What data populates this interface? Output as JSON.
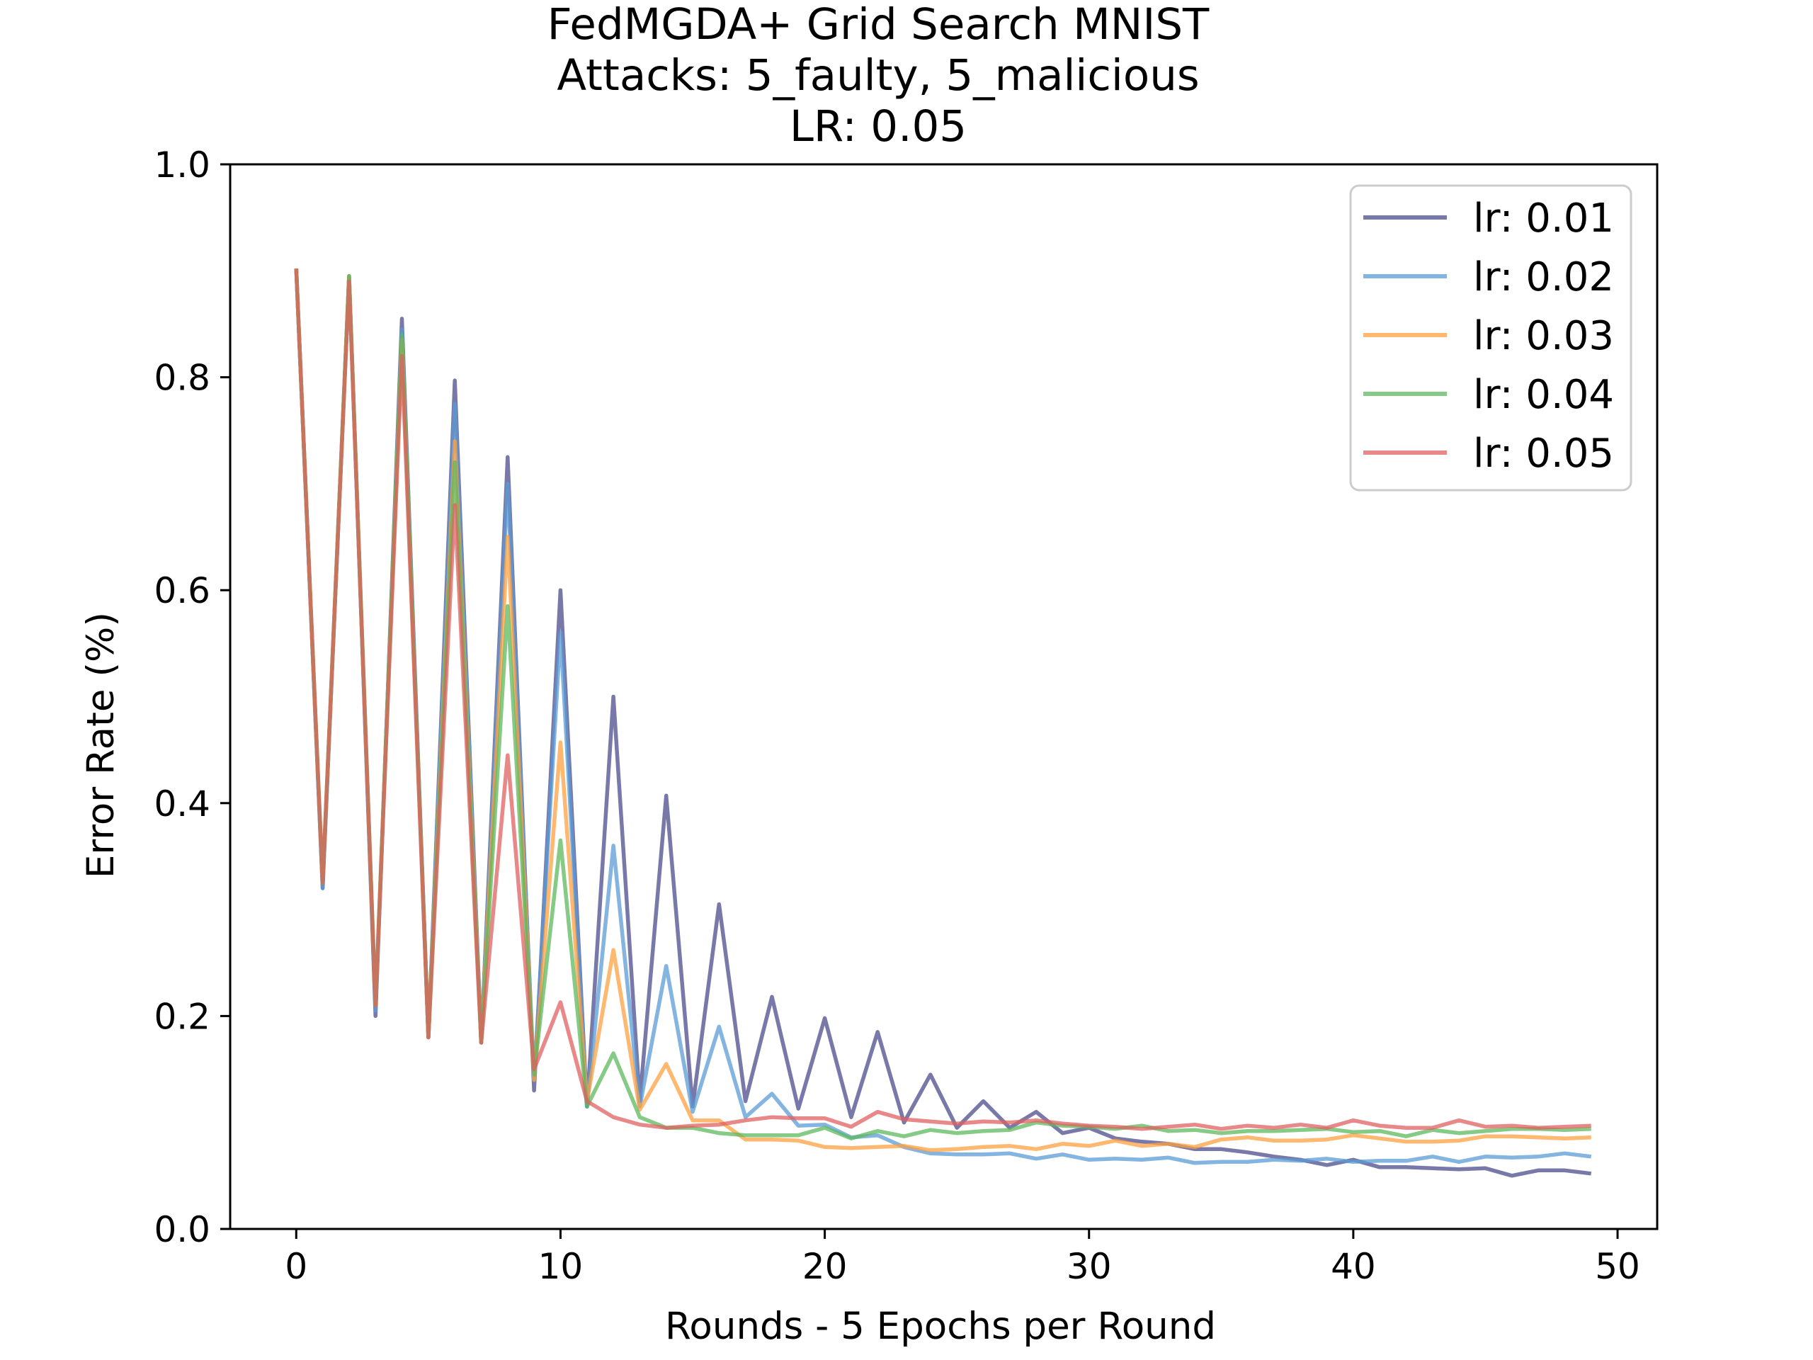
{
  "chart_data": {
    "type": "line",
    "title": [
      "FedMGDA+ Grid Search MNIST",
      "Attacks: 5_faulty, 5_malicious",
      "LR: 0.05"
    ],
    "xlabel": "Rounds - 5 Epochs per Round",
    "ylabel": "Error Rate (%)",
    "xlim": [
      -2.5,
      51.5
    ],
    "ylim": [
      0.0,
      1.0
    ],
    "xticks": [
      0,
      10,
      20,
      30,
      40,
      50
    ],
    "xtick_labels": [
      "0",
      "10",
      "20",
      "30",
      "40",
      "50"
    ],
    "yticks": [
      0.0,
      0.2,
      0.4,
      0.6,
      0.8,
      1.0
    ],
    "ytick_labels": [
      "0.0",
      "0.2",
      "0.4",
      "0.6",
      "0.8",
      "1.0"
    ],
    "grid": false,
    "legend_position": "top-right",
    "x": [
      0,
      1,
      2,
      3,
      4,
      5,
      6,
      7,
      8,
      9,
      10,
      11,
      12,
      13,
      14,
      15,
      16,
      17,
      18,
      19,
      20,
      21,
      22,
      23,
      24,
      25,
      26,
      27,
      28,
      29,
      30,
      31,
      32,
      33,
      34,
      35,
      36,
      37,
      38,
      39,
      40,
      41,
      42,
      43,
      44,
      45,
      46,
      47,
      48,
      49
    ],
    "series": [
      {
        "name": "lr: 0.01",
        "color": "#4c4c8c",
        "values": [
          0.902,
          0.32,
          0.895,
          0.2,
          0.855,
          0.18,
          0.797,
          0.175,
          0.725,
          0.13,
          0.6,
          0.115,
          0.5,
          0.12,
          0.407,
          0.115,
          0.305,
          0.12,
          0.218,
          0.113,
          0.198,
          0.105,
          0.185,
          0.1,
          0.145,
          0.095,
          0.12,
          0.095,
          0.11,
          0.09,
          0.095,
          0.085,
          0.082,
          0.08,
          0.075,
          0.075,
          0.072,
          0.068,
          0.065,
          0.06,
          0.065,
          0.058,
          0.058,
          0.057,
          0.056,
          0.057,
          0.05,
          0.055,
          0.055,
          0.052
        ]
      },
      {
        "name": "lr: 0.02",
        "color": "#5b9bd5",
        "values": [
          0.902,
          0.32,
          0.895,
          0.205,
          0.845,
          0.18,
          0.775,
          0.175,
          0.7,
          0.14,
          0.56,
          0.115,
          0.36,
          0.115,
          0.247,
          0.11,
          0.19,
          0.105,
          0.127,
          0.097,
          0.098,
          0.086,
          0.088,
          0.077,
          0.071,
          0.07,
          0.07,
          0.071,
          0.066,
          0.07,
          0.065,
          0.066,
          0.065,
          0.067,
          0.062,
          0.063,
          0.063,
          0.065,
          0.064,
          0.066,
          0.063,
          0.064,
          0.064,
          0.068,
          0.063,
          0.068,
          0.067,
          0.068,
          0.071,
          0.068
        ]
      },
      {
        "name": "lr: 0.03",
        "color": "#ffa040",
        "values": [
          0.902,
          0.325,
          0.895,
          0.21,
          0.835,
          0.18,
          0.74,
          0.175,
          0.65,
          0.14,
          0.457,
          0.12,
          0.262,
          0.112,
          0.155,
          0.102,
          0.102,
          0.084,
          0.084,
          0.083,
          0.077,
          0.076,
          0.077,
          0.078,
          0.074,
          0.075,
          0.077,
          0.078,
          0.075,
          0.08,
          0.078,
          0.083,
          0.078,
          0.08,
          0.077,
          0.084,
          0.086,
          0.083,
          0.083,
          0.084,
          0.088,
          0.085,
          0.082,
          0.082,
          0.083,
          0.087,
          0.087,
          0.086,
          0.085,
          0.086
        ]
      },
      {
        "name": "lr: 0.04",
        "color": "#5cb85c",
        "values": [
          0.902,
          0.325,
          0.895,
          0.21,
          0.84,
          0.18,
          0.72,
          0.175,
          0.585,
          0.145,
          0.365,
          0.115,
          0.165,
          0.105,
          0.095,
          0.095,
          0.09,
          0.088,
          0.088,
          0.088,
          0.095,
          0.085,
          0.092,
          0.087,
          0.093,
          0.09,
          0.092,
          0.093,
          0.1,
          0.097,
          0.096,
          0.094,
          0.097,
          0.092,
          0.093,
          0.09,
          0.092,
          0.092,
          0.093,
          0.094,
          0.091,
          0.092,
          0.087,
          0.093,
          0.09,
          0.092,
          0.094,
          0.094,
          0.093,
          0.094
        ]
      },
      {
        "name": "lr: 0.05",
        "color": "#e06060",
        "values": [
          0.902,
          0.325,
          0.89,
          0.21,
          0.82,
          0.18,
          0.68,
          0.175,
          0.445,
          0.15,
          0.213,
          0.12,
          0.105,
          0.098,
          0.095,
          0.097,
          0.098,
          0.102,
          0.105,
          0.104,
          0.104,
          0.096,
          0.11,
          0.103,
          0.101,
          0.099,
          0.101,
          0.1,
          0.102,
          0.099,
          0.097,
          0.096,
          0.094,
          0.096,
          0.098,
          0.094,
          0.097,
          0.095,
          0.098,
          0.095,
          0.102,
          0.097,
          0.095,
          0.095,
          0.102,
          0.096,
          0.097,
          0.095,
          0.096,
          0.097
        ]
      }
    ]
  }
}
